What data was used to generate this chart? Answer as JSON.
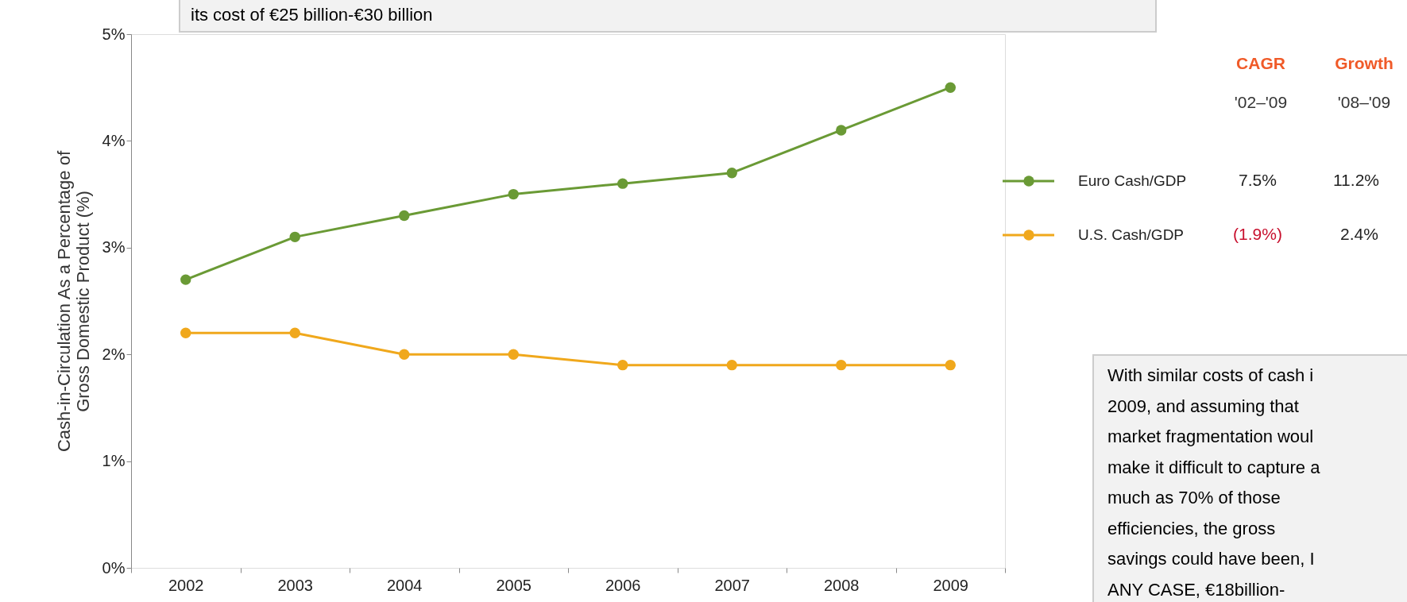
{
  "chart_data": {
    "type": "line",
    "categories": [
      "2002",
      "2003",
      "2004",
      "2005",
      "2006",
      "2007",
      "2008",
      "2009"
    ],
    "series": [
      {
        "name": "Euro Cash/GDP",
        "color": "#6a9a35",
        "values": [
          2.7,
          3.1,
          3.3,
          3.5,
          3.6,
          3.7,
          4.1,
          4.5
        ]
      },
      {
        "name": "U.S. Cash/GDP",
        "color": "#f0a81c",
        "values": [
          2.2,
          2.2,
          2.0,
          2.0,
          1.9,
          1.9,
          1.9,
          1.9
        ]
      }
    ],
    "ylabel": "Cash-in-Circulation As a Percentage of Gross Domestic Product (%)",
    "ylim": [
      0,
      5
    ],
    "yticks": [
      {
        "value": 0,
        "label": "0%"
      },
      {
        "value": 1,
        "label": "1%"
      },
      {
        "value": 2,
        "label": "2%"
      },
      {
        "value": 3,
        "label": "3%"
      },
      {
        "value": 4,
        "label": "4%"
      },
      {
        "value": 5,
        "label": "5%"
      }
    ],
    "marker": "circle",
    "line_style": "solid",
    "grid": false,
    "legend": "right",
    "annotations": [
      "its cost of €25 billion-€30 billion",
      "With similar costs of cash i\n2009, and assuming that\nmarket fragmentation woul\nmake it difficult to capture a\nmuch as 70% of those\nefficiencies, the gross\nsavings could have been, I\nANY CASE, €18billion-",
      "CAGR",
      "Growth",
      "'02–'09",
      "'08–'09",
      "7.5%",
      "11.2%",
      "(1.9%)",
      "2.4%"
    ]
  }
}
